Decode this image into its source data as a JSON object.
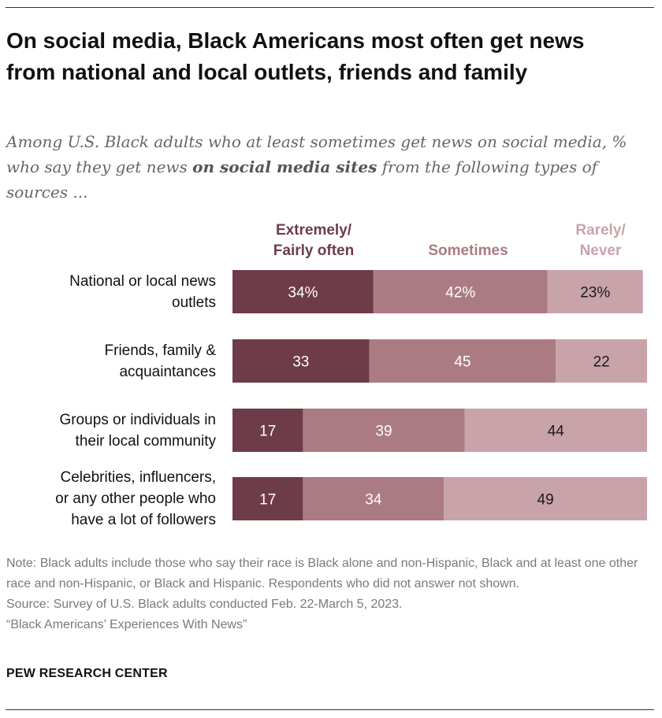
{
  "title": "On social media, Black Americans most often get news from national and local outlets, friends and family",
  "subtitle": {
    "before": "Among U.S. Black adults who at least sometimes get news on social media, % who say they get news ",
    "emphasis": "on social media sites",
    "after": " from the following types of sources ..."
  },
  "legend": [
    {
      "line1": "Extremely/",
      "line2": "Fairly often",
      "color": "#6e3c48"
    },
    {
      "line1": "",
      "line2": "Sometimes",
      "color": "#ab7b84"
    },
    {
      "line1": "Rarely/",
      "line2": "Never",
      "color": "#c8a3aa"
    }
  ],
  "chart_data": {
    "type": "bar",
    "orientation": "horizontal",
    "stacked": true,
    "categories": [
      "National or local news outlets",
      "Friends, family & acquaintances",
      "Groups or individuals in their local community",
      "Celebrities, influencers, or any other people who have a lot of followers"
    ],
    "category_lines": [
      [
        "National or local news",
        "outlets"
      ],
      [
        "Friends, family &",
        "acquaintances"
      ],
      [
        "Groups or individuals in",
        "their local community"
      ],
      [
        "Celebrities, influencers,",
        "or any other people who",
        "have a lot of followers"
      ]
    ],
    "series": [
      {
        "name": "Extremely/Fairly often",
        "values": [
          34,
          33,
          17,
          17
        ],
        "color": "#6e3c48",
        "label_color": "#ffffff"
      },
      {
        "name": "Sometimes",
        "values": [
          42,
          45,
          39,
          34
        ],
        "color": "#ab7b84",
        "label_color": "#ffffff"
      },
      {
        "name": "Rarely/Never",
        "values": [
          23,
          22,
          44,
          49
        ],
        "color": "#c8a3aa",
        "label_color": "#1a1a1a"
      }
    ],
    "value_labels": [
      [
        "34%",
        "42%",
        "23%"
      ],
      [
        "33",
        "45",
        "22"
      ],
      [
        "17",
        "39",
        "44"
      ],
      [
        "17",
        "34",
        "49"
      ]
    ],
    "xlim": [
      0,
      100
    ],
    "grid": false
  },
  "notes": {
    "note": "Note: Black adults include those who say their race is Black alone and non-Hispanic, Black and at least one other race and non-Hispanic, or Black and Hispanic. Respondents who did not answer not shown.",
    "source": "Source: Survey of U.S. Black adults conducted Feb. 22-March 5, 2023.",
    "report": "“Black Americans’ Experiences With News”"
  },
  "org": "PEW RESEARCH CENTER"
}
